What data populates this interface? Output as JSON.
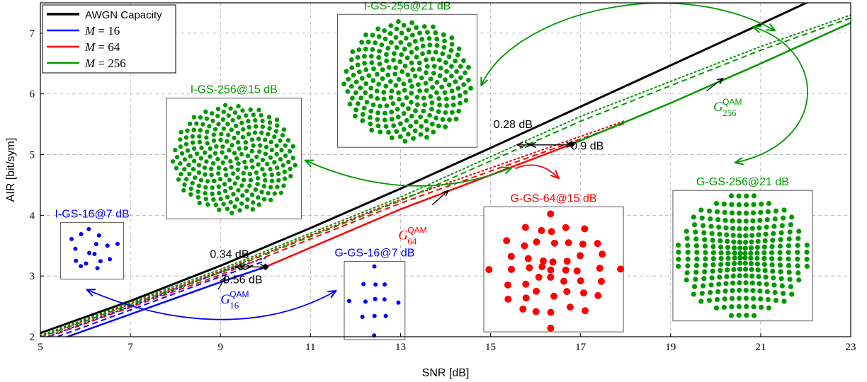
{
  "chart_data": {
    "type": "line",
    "xlabel": "SNR [dB]",
    "ylabel": "AIR [bit/sym]",
    "xlim": [
      5,
      23
    ],
    "ylim": [
      2,
      7.5
    ],
    "xticks": [
      5,
      7,
      9,
      11,
      13,
      15,
      17,
      19,
      21,
      23
    ],
    "yticks": [
      2,
      3,
      4,
      5,
      6,
      7
    ],
    "grid": true,
    "legend_position": "top-left",
    "legend": [
      {
        "label": "AWGN Capacity",
        "color": "#000000",
        "math": false
      },
      {
        "label": "M = 16",
        "var": "M",
        "rest": " = 16",
        "color": "#0000ff",
        "math": true
      },
      {
        "label": "M = 64",
        "var": "M",
        "rest": " = 64",
        "color": "#ff0000",
        "math": true
      },
      {
        "label": "M = 256",
        "var": "M",
        "rest": " = 256",
        "color": "#009900",
        "math": true
      }
    ],
    "series": [
      {
        "name": "AWGN Capacity",
        "color": "#000000",
        "style": "solid",
        "width": 3,
        "x": [
          5,
          7,
          9,
          11,
          13,
          15,
          17,
          19,
          21,
          23
        ],
        "y": [
          2.06,
          2.59,
          3.17,
          3.79,
          4.44,
          5.11,
          5.79,
          6.47,
          7.15,
          7.84
        ]
      },
      {
        "name": "M = 16 I-GS",
        "color": "#0000ff",
        "style": "dotted",
        "width": 2,
        "x": [
          5,
          7,
          9,
          10
        ],
        "y": [
          1.96,
          2.5,
          3.06,
          3.3
        ]
      },
      {
        "name": "M = 16 G-GS",
        "color": "#0000ff",
        "style": "dashed",
        "width": 2,
        "x": [
          5,
          7,
          9,
          10
        ],
        "y": [
          1.9,
          2.44,
          2.99,
          3.25
        ]
      },
      {
        "name": "M = 16 QAM",
        "color": "#0000ff",
        "style": "solid",
        "width": 2.5,
        "x": [
          5,
          7,
          9,
          10
        ],
        "y": [
          1.84,
          2.37,
          2.9,
          3.15
        ]
      },
      {
        "name": "M = 64 I-GS",
        "color": "#ff0000",
        "style": "dotted",
        "width": 2,
        "x": [
          5,
          9,
          13,
          18
        ],
        "y": [
          2.0,
          3.08,
          4.26,
          5.56
        ]
      },
      {
        "name": "M = 64 G-GS",
        "color": "#ff0000",
        "style": "dashed",
        "width": 2,
        "x": [
          5,
          9,
          13,
          18
        ],
        "y": [
          1.95,
          3.02,
          4.2,
          5.52
        ]
      },
      {
        "name": "M = 64 QAM",
        "color": "#ff0000",
        "style": "solid",
        "width": 2.5,
        "x": [
          10,
          13,
          16.8
        ],
        "y": [
          3.15,
          4.1,
          5.17
        ]
      },
      {
        "name": "M = 256 I-GS",
        "color": "#009900",
        "style": "dotted",
        "width": 2,
        "x": [
          5,
          9,
          13,
          17,
          21,
          23
        ],
        "y": [
          2.02,
          3.11,
          4.3,
          5.63,
          6.78,
          7.3
        ]
      },
      {
        "name": "M = 256 G-GS",
        "color": "#009900",
        "style": "dashed",
        "width": 2,
        "x": [
          5,
          9,
          13,
          17,
          21,
          23
        ],
        "y": [
          1.99,
          3.06,
          4.24,
          5.55,
          6.72,
          7.25
        ]
      },
      {
        "name": "M = 256 QAM",
        "color": "#009900",
        "style": "solid",
        "width": 2.5,
        "x": [
          16.8,
          19,
          21,
          23
        ],
        "y": [
          5.17,
          5.85,
          6.5,
          7.17
        ]
      }
    ],
    "markers": [
      {
        "x": 10,
        "y": 3.15,
        "shape": "diamond",
        "color": "#000000"
      },
      {
        "x": 16.8,
        "y": 5.17,
        "shape": "diamond",
        "color": "#000000"
      }
    ],
    "gap_annotations": [
      {
        "label": "0.34 dB",
        "label_at": [
          9.2,
          3.3
        ],
        "x1": 9.35,
        "x2": 9.66,
        "y": 3.15
      },
      {
        "label": "0.56 dB",
        "label_at": [
          9.5,
          2.88
        ],
        "x1": 9.44,
        "x2": 10.0,
        "y": 3.15
      },
      {
        "label": "0.28 dB",
        "label_at": [
          15.5,
          5.44
        ],
        "x1": 15.6,
        "x2": 15.88,
        "y": 5.16
      },
      {
        "label": "0.9 dB",
        "label_at": [
          17.15,
          5.08
        ],
        "x1": 15.9,
        "x2": 16.8,
        "y": 5.16
      }
    ],
    "qam_labels": [
      {
        "base": "G",
        "sup": "QAM",
        "sub": "16",
        "color": "#0000ff",
        "at": [
          9.0,
          2.55
        ],
        "arrow_from": [
          8.95,
          2.78
        ],
        "arrow_to": [
          9.1,
          2.97
        ]
      },
      {
        "base": "G",
        "sup": "QAM",
        "sub": "64",
        "color": "#ff0000",
        "at": [
          12.95,
          3.6
        ],
        "arrow_from": [
          13.7,
          4.17
        ],
        "arrow_to": [
          14.05,
          4.4
        ]
      },
      {
        "base": "G",
        "sup": "QAM",
        "sub": "256",
        "color": "#009900",
        "at": [
          19.95,
          5.72
        ],
        "arrow_from": [
          19.8,
          6.05
        ],
        "arrow_to": [
          20.15,
          6.25
        ]
      }
    ],
    "constellation_insets": [
      {
        "title": "I-GS-16@7 dB",
        "color": "#0000ff",
        "box": [
          5.45,
          2.95,
          6.85,
          3.88
        ],
        "dot": 3,
        "kind": "igs",
        "n": 16
      },
      {
        "title": "G-GS-16@7 dB",
        "color": "#0000ff",
        "box": [
          11.75,
          1.95,
          13.1,
          3.24
        ],
        "dot": 3,
        "kind": "ggs",
        "n": 16
      },
      {
        "title": "I-GS-256@15 dB",
        "color": "#009900",
        "box": [
          7.8,
          3.94,
          10.8,
          5.93
        ],
        "dot": 3.2,
        "kind": "igs",
        "n": 256
      },
      {
        "title": "I-GS-256@21 dB",
        "color": "#009900",
        "box": [
          11.6,
          5.12,
          14.7,
          7.31
        ],
        "dot": 3.4,
        "kind": "igs",
        "n": 256
      },
      {
        "title": "G-GS-64@15 dB",
        "color": "#ff0000",
        "box": [
          14.85,
          2.08,
          17.95,
          4.14
        ],
        "dot": 5,
        "kind": "ggs",
        "n": 64
      },
      {
        "title": "G-GS-256@21 dB",
        "color": "#009900",
        "box": [
          19.05,
          2.26,
          22.15,
          4.41
        ],
        "dot": 3.6,
        "kind": "ggs",
        "n": 256
      }
    ],
    "curved_arrows": [
      {
        "color": "#0000ff",
        "from": [
          6.05,
          2.77
        ],
        "c1": [
          8.0,
          2.15
        ],
        "c2": [
          10.0,
          2.1
        ],
        "to": [
          11.55,
          2.75
        ]
      },
      {
        "color": "#009900",
        "from": [
          15.45,
          4.78
        ],
        "c1": [
          13.5,
          4.2
        ],
        "c2": [
          11.8,
          4.6
        ],
        "to": [
          10.9,
          4.9
        ]
      },
      {
        "color": "#009900",
        "from": [
          21.3,
          7.05
        ],
        "c1": [
          19.0,
          8.0
        ],
        "c2": [
          15.5,
          7.3
        ],
        "to": [
          14.8,
          6.15
        ]
      },
      {
        "color": "#009900",
        "from": [
          20.85,
          7.1
        ],
        "c1": [
          22.5,
          6.7
        ],
        "c2": [
          22.5,
          5.2
        ],
        "to": [
          20.45,
          4.87
        ]
      },
      {
        "color": "#ff0000",
        "from": [
          15.55,
          4.77
        ],
        "c1": [
          15.95,
          4.9
        ],
        "c2": [
          16.25,
          4.8
        ],
        "to": [
          16.5,
          4.62
        ]
      }
    ]
  }
}
